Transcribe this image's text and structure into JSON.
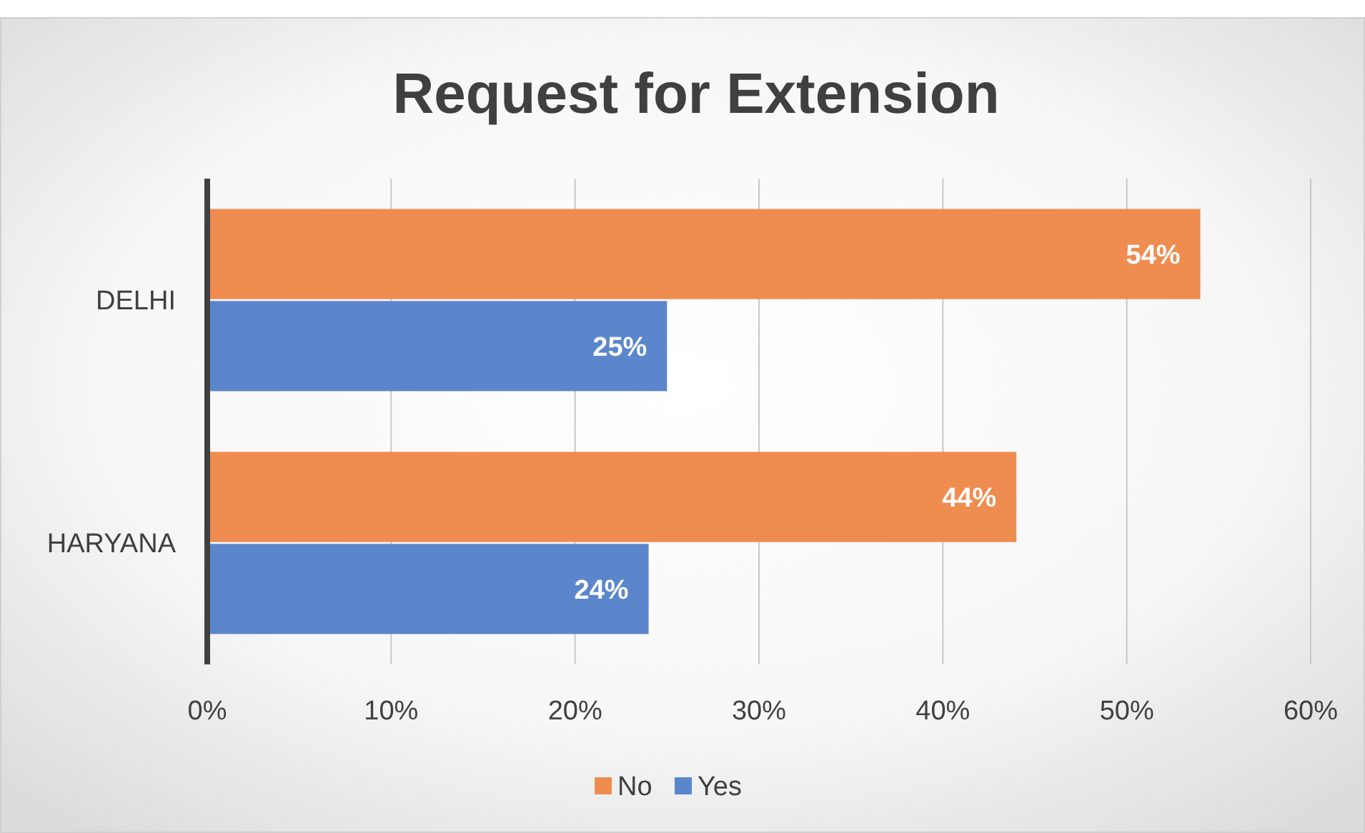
{
  "chart_data": {
    "type": "bar",
    "orientation": "horizontal",
    "title": "Request for Extension",
    "categories": [
      "DELHI",
      "HARYANA"
    ],
    "series": [
      {
        "name": "No",
        "color": "#ef8c4f",
        "values": [
          54,
          44
        ],
        "value_labels": [
          "54%",
          "44%"
        ]
      },
      {
        "name": "Yes",
        "color": "#5b86cc",
        "values": [
          25,
          24
        ],
        "value_labels": [
          "25%",
          "24%"
        ]
      }
    ],
    "xlim": [
      0,
      60
    ],
    "xticks": [
      {
        "value": 0,
        "label": "0%"
      },
      {
        "value": 10,
        "label": "10%"
      },
      {
        "value": 20,
        "label": "20%"
      },
      {
        "value": 30,
        "label": "30%"
      },
      {
        "value": 40,
        "label": "40%"
      },
      {
        "value": 50,
        "label": "50%"
      },
      {
        "value": 60,
        "label": "60%"
      }
    ],
    "grid": "x",
    "legend": "bottom"
  }
}
